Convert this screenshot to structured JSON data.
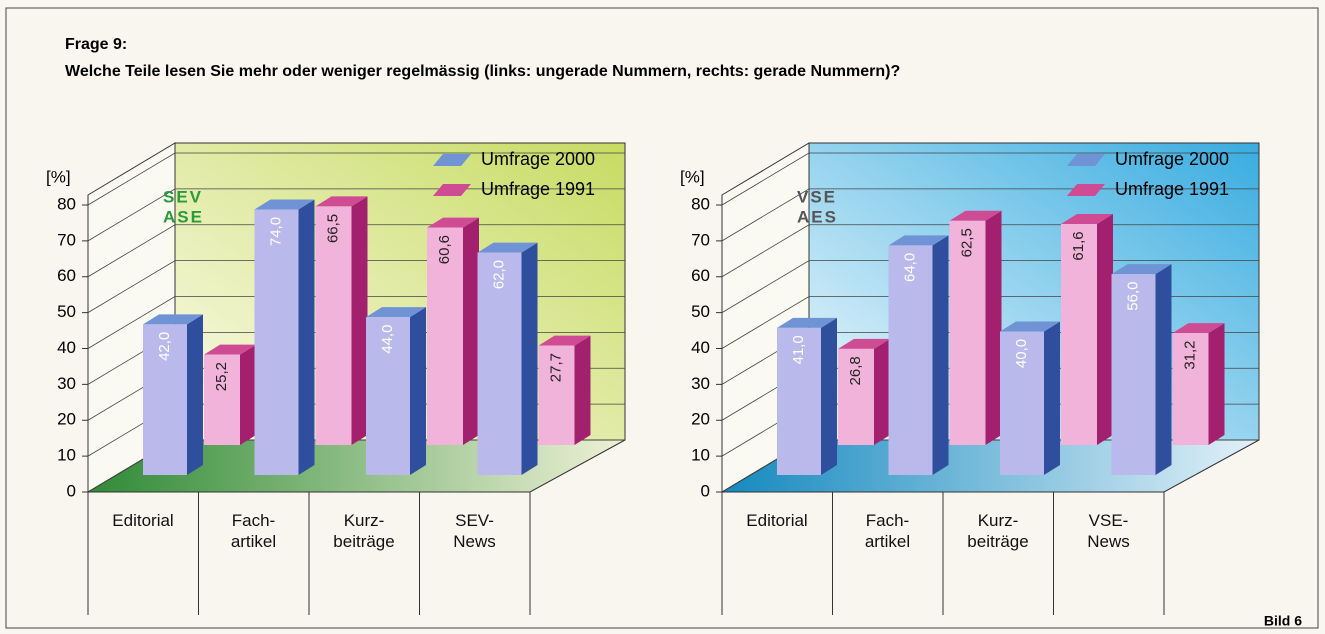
{
  "header": {
    "title": "Frage 9:",
    "question": "Welche Teile lesen Sie mehr oder weniger regelmässig (links: ungerade Nummern, rechts: gerade Nummern)?"
  },
  "chart_data": [
    {
      "type": "bar",
      "ylabel": "[%]",
      "logo": [
        "SEV",
        "ASE"
      ],
      "categories": [
        "Editorial",
        "Fach-\nartikel",
        "Kurz-\nbeiträge",
        "SEV-\nNews"
      ],
      "series": [
        {
          "name": "Umfrage 2000",
          "color": "#b9b9ec",
          "edge_color": "#2f4f9e",
          "top_color": "#6f93d4",
          "values": [
            42.0,
            74.0,
            44.0,
            62.0
          ],
          "value_labels": [
            "42,0",
            "74,0",
            "44,0",
            "62,0"
          ]
        },
        {
          "name": "Umfrage 1991",
          "color": "#f2b3da",
          "edge_color": "#a3206f",
          "top_color": "#cf4b93",
          "values": [
            25.2,
            66.5,
            60.6,
            27.7
          ],
          "value_labels": [
            "25,2",
            "66,5",
            "60,6",
            "27,7"
          ]
        }
      ],
      "ylim": [
        0,
        80
      ],
      "yticks": [
        0,
        10,
        20,
        30,
        40,
        50,
        60,
        70,
        80
      ],
      "grid": true,
      "legend": "upper right"
    },
    {
      "type": "bar",
      "ylabel": "[%]",
      "logo": [
        "VSE",
        "AES"
      ],
      "categories": [
        "Editorial",
        "Fach-\nartikel",
        "Kurz-\nbeiträge",
        "VSE-\nNews"
      ],
      "series": [
        {
          "name": "Umfrage 2000",
          "color": "#b9b9ec",
          "edge_color": "#2f4f9e",
          "top_color": "#6f93d4",
          "values": [
            41.0,
            64.0,
            40.0,
            56.0
          ],
          "value_labels": [
            "41,0",
            "64,0",
            "40,0",
            "56,0"
          ]
        },
        {
          "name": "Umfrage 1991",
          "color": "#f2b3da",
          "edge_color": "#a3206f",
          "top_color": "#cf4b93",
          "values": [
            26.8,
            62.5,
            61.6,
            31.2
          ],
          "value_labels": [
            "26,8",
            "62,5",
            "61,6",
            "31,2"
          ]
        }
      ],
      "ylim": [
        0,
        80
      ],
      "yticks": [
        0,
        10,
        20,
        30,
        40,
        50,
        60,
        70,
        80
      ],
      "grid": true,
      "legend": "upper right"
    }
  ],
  "footer": "Bild 6"
}
